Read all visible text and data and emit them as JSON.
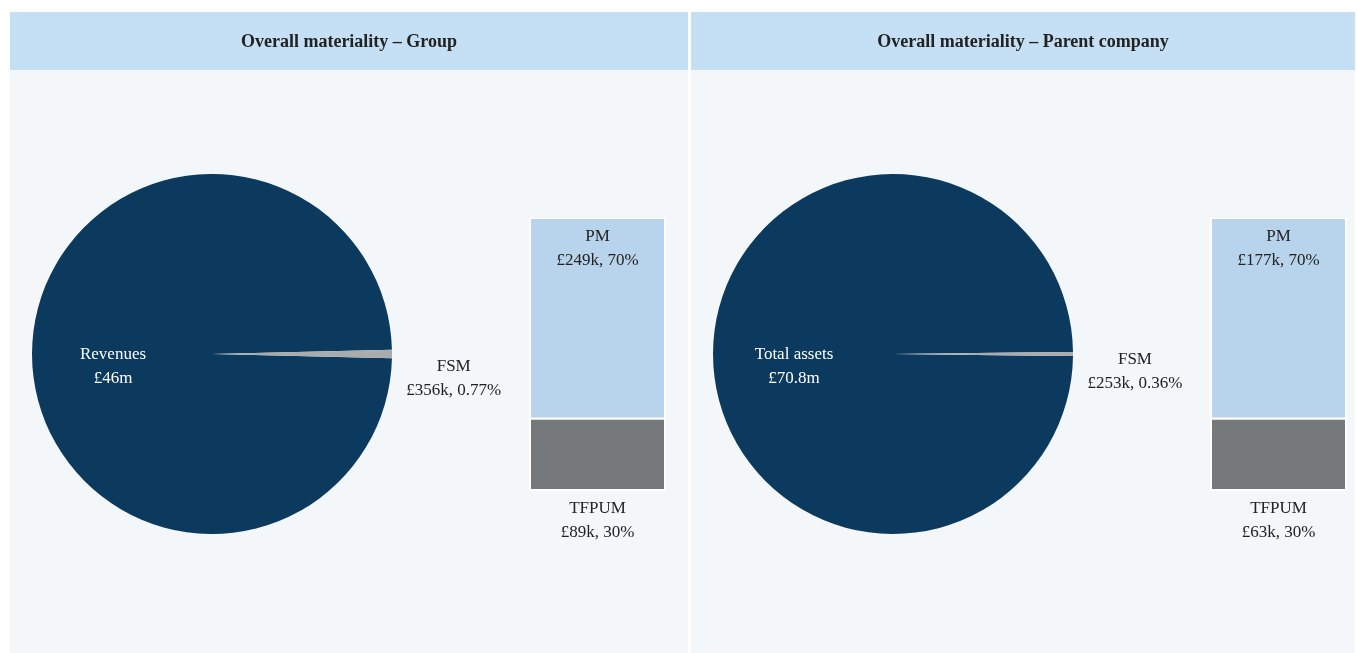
{
  "chart_data": [
    {
      "type": "pie",
      "title": "Overall materiality – Group",
      "categories": [
        "Revenues",
        "FSM"
      ],
      "values": [
        46000000,
        356000
      ],
      "value_labels": [
        "£46m",
        "£356k, 0.77%"
      ],
      "colors": [
        "#0b3a5e",
        "#a9acae"
      ]
    },
    {
      "type": "bar",
      "stacked": true,
      "categories": [
        null
      ],
      "series": [
        {
          "name": "TFPUM",
          "color": "#76797b",
          "values": [
            89000
          ],
          "value_labels": [
            "£89k, 30%"
          ]
        },
        {
          "name": "PM",
          "color": "#b8d3ec",
          "values": [
            249000
          ],
          "value_labels": [
            "£249k, 70%"
          ]
        }
      ]
    },
    {
      "type": "pie",
      "title": "Overall materiality – Parent company",
      "categories": [
        "Total assets",
        "FSM"
      ],
      "values": [
        70800000,
        253000
      ],
      "value_labels": [
        "£70.8m",
        "£253k, 0.36%"
      ],
      "colors": [
        "#0b3a5e",
        "#a9acae"
      ]
    },
    {
      "type": "bar",
      "stacked": true,
      "categories": [
        null
      ],
      "series": [
        {
          "name": "TFPUM",
          "color": "#76797b",
          "values": [
            63000
          ],
          "value_labels": [
            "£63k, 30%"
          ]
        },
        {
          "name": "PM",
          "color": "#b8d3ec",
          "values": [
            177000
          ],
          "value_labels": [
            "£177k, 70%"
          ]
        }
      ]
    }
  ]
}
